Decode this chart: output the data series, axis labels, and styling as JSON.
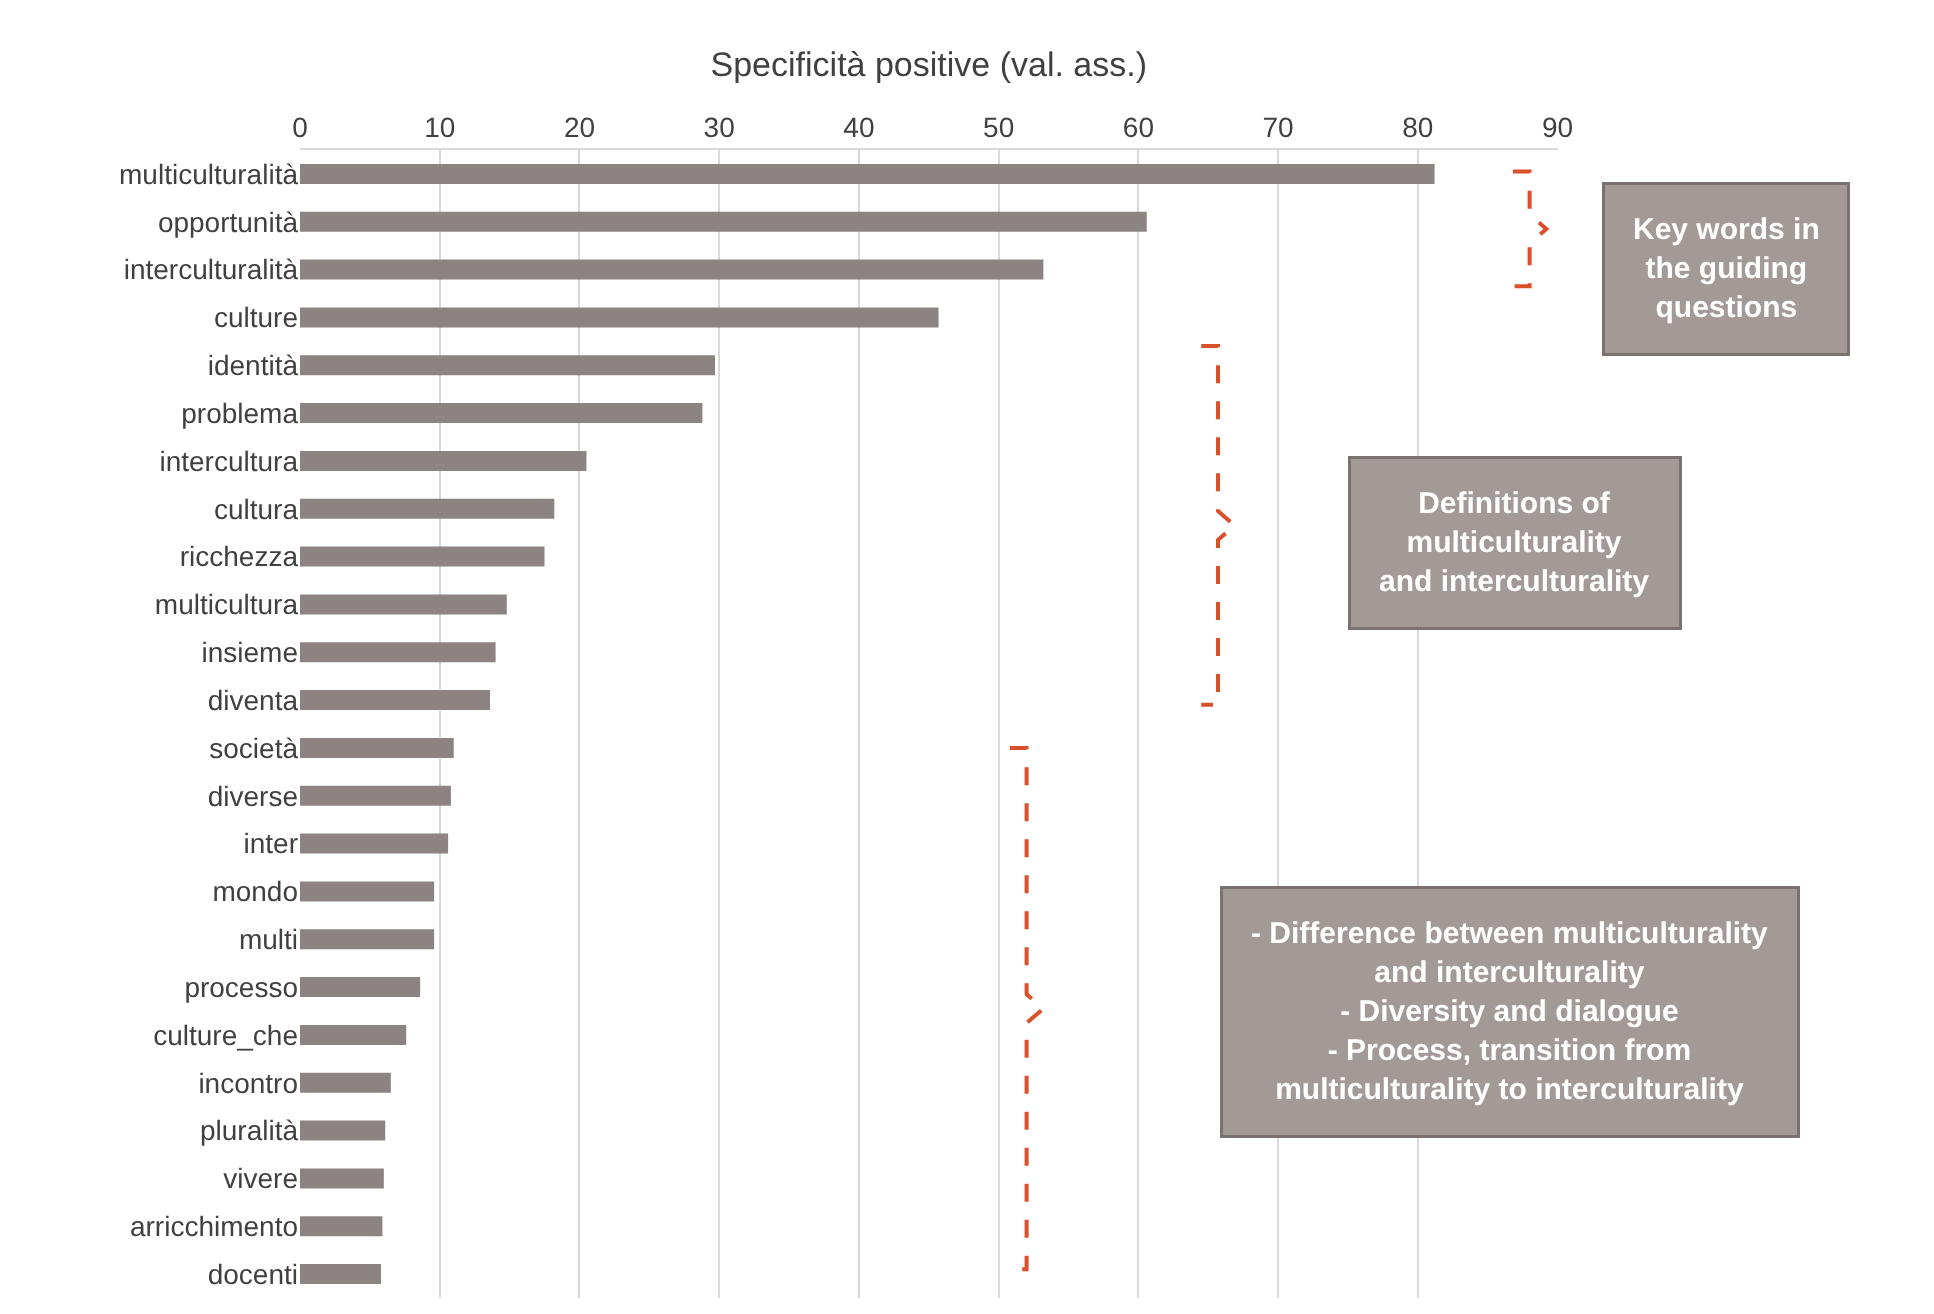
{
  "chart_data": {
    "type": "bar",
    "orientation": "horizontal",
    "xlabel": "Specificità positive (val. ass.)",
    "categories": [
      "multiculturalità",
      "opportunità",
      "interculturalità",
      "culture",
      "identità",
      "problema",
      "intercultura",
      "cultura",
      "ricchezza",
      "multicultura",
      "insieme",
      "diventa",
      "società",
      "diverse",
      "inter",
      "mondo",
      "multi",
      "processo",
      "culture_che",
      "incontro",
      "pluralità",
      "vivere",
      "arricchimento",
      "docenti"
    ],
    "values": [
      81.2,
      60.6,
      53.2,
      45.7,
      29.7,
      28.8,
      20.5,
      18.2,
      17.5,
      14.8,
      14.0,
      13.6,
      11.0,
      10.8,
      10.6,
      9.6,
      9.6,
      8.6,
      7.6,
      6.5,
      6.1,
      6.0,
      5.9,
      5.8
    ],
    "color": "#8c8483",
    "xlim": [
      0,
      90
    ],
    "xticks": [
      0,
      10,
      20,
      30,
      40,
      50,
      60,
      70,
      80,
      90
    ],
    "grid": "x",
    "annotations": [
      "Key words in\nthe guiding\nquestions",
      "Definitions of\nmulticulturality\nand interculturality",
      "- Difference between multiculturality\nand interculturality\n- Diversity and dialogue\n- Process, transition from\nmulticulturality to interculturality"
    ]
  }
}
